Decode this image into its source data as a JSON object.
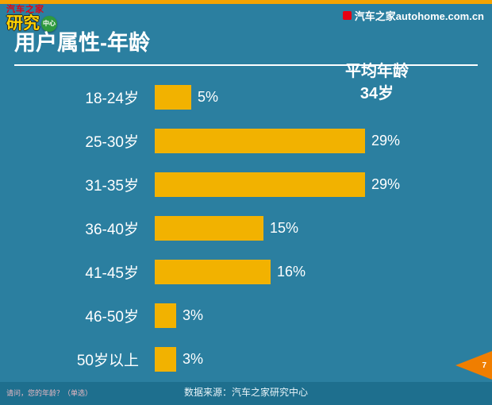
{
  "header": {
    "logo_brand": "汽车之家",
    "logo_main": "研究",
    "logo_badge": "中心",
    "site": "汽车之家autohome.com.cn"
  },
  "title": "用户属性-年龄",
  "annotation": {
    "line1": "平均年龄",
    "line2": "34岁"
  },
  "chart_data": {
    "type": "bar",
    "orientation": "horizontal",
    "title": "用户属性-年龄",
    "categories": [
      "18-24岁",
      "25-30岁",
      "31-35岁",
      "36-40岁",
      "41-45岁",
      "46-50岁",
      "50岁以上"
    ],
    "values": [
      5,
      29,
      29,
      15,
      16,
      3,
      3
    ],
    "value_suffix": "%",
    "annotation": "平均年龄 34岁",
    "xlim": [
      0,
      32
    ],
    "grid": false,
    "bar_color": "#F2B200"
  },
  "footer": {
    "question": "请问，您的年龄？（单选）",
    "source": "数据来源：汽车之家研究中心",
    "page": "7"
  },
  "colors": {
    "background": "#2B7FA0",
    "footer_bar": "#1E6F8E",
    "top_strip": "#F5A300",
    "bar": "#F2B200",
    "brand_red": "#E60012",
    "logo_yellow": "#FFD200",
    "arrow_orange": "#F07E00"
  }
}
